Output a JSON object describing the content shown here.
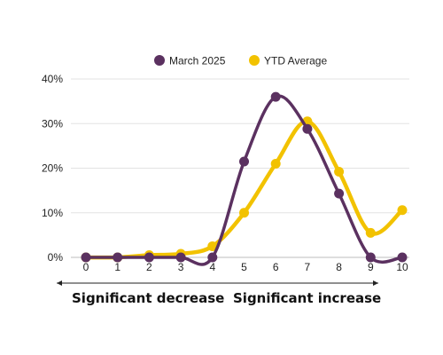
{
  "chart_data": {
    "type": "line",
    "x": [
      0,
      1,
      2,
      3,
      4,
      5,
      6,
      7,
      8,
      9,
      10
    ],
    "y_ticks": [
      "0%",
      "10%",
      "20%",
      "30%",
      "40%"
    ],
    "ylim": [
      0,
      40
    ],
    "grid": true,
    "legend_position": "top",
    "series": [
      {
        "name": "March 2025",
        "color": "#5b3160",
        "values": [
          0,
          0,
          0,
          0,
          0,
          21.5,
          36,
          28.8,
          14.3,
          0,
          0
        ]
      },
      {
        "name": "YTD Average",
        "color": "#f2c200",
        "values": [
          0,
          0,
          0.5,
          0.8,
          2.5,
          10,
          21,
          30.5,
          19.2,
          5.5,
          10.6
        ]
      }
    ],
    "scale_labels": {
      "left": "Significant decrease",
      "right": "Significant increase"
    }
  }
}
